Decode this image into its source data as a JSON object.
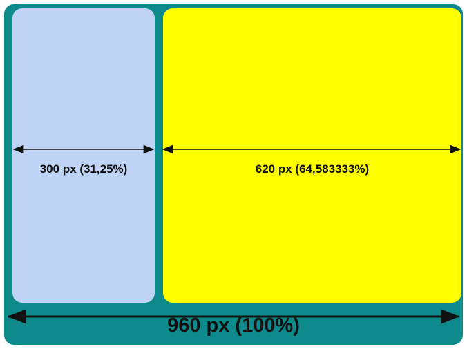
{
  "colors": {
    "frame": "#0E8A8C",
    "left_panel": "#BFD3F5",
    "right_panel": "#FFFF00",
    "arrow": "#111111"
  },
  "labels": {
    "left_width": "300 px (31,25%)",
    "right_width": "620 px (64,583333%)",
    "total_width": "960 px (100%)"
  }
}
